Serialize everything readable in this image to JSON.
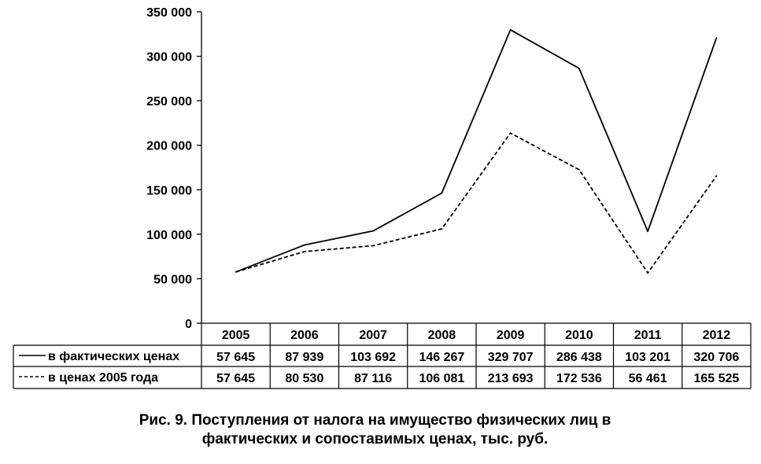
{
  "chart_data": {
    "type": "line",
    "categories": [
      "2005",
      "2006",
      "2007",
      "2008",
      "2009",
      "2010",
      "2011",
      "2012"
    ],
    "series": [
      {
        "name": "в фактических  ценах",
        "values": [
          57645,
          87939,
          103692,
          146267,
          329707,
          286438,
          103201,
          320706
        ],
        "value_labels": [
          "57 645",
          "87 939",
          "103 692",
          "146 267",
          "329 707",
          "286 438",
          "103 201",
          "320 706"
        ],
        "line_style": "solid",
        "color": "#000000"
      },
      {
        "name": "в ценах 2005 года",
        "values": [
          57645,
          80530,
          87116,
          106081,
          213693,
          172536,
          56461,
          165525
        ],
        "value_labels": [
          "57 645",
          "80 530",
          "87 116",
          "106 081",
          "213 693",
          "172 536",
          "56 461",
          "165 525"
        ],
        "line_style": "dashed",
        "color": "#000000"
      }
    ],
    "ylim": [
      0,
      350000
    ],
    "y_ticks": [
      "0",
      "50 000",
      "100 000",
      "150 000",
      "200 000",
      "250 000",
      "300 000",
      "350 000"
    ],
    "grid": false,
    "legend": "data table"
  },
  "caption": {
    "line1": "Рис. 9. Поступления от налога на имущество физических лиц в",
    "line2": "фактических и сопоставимых ценах, тыс. руб."
  }
}
